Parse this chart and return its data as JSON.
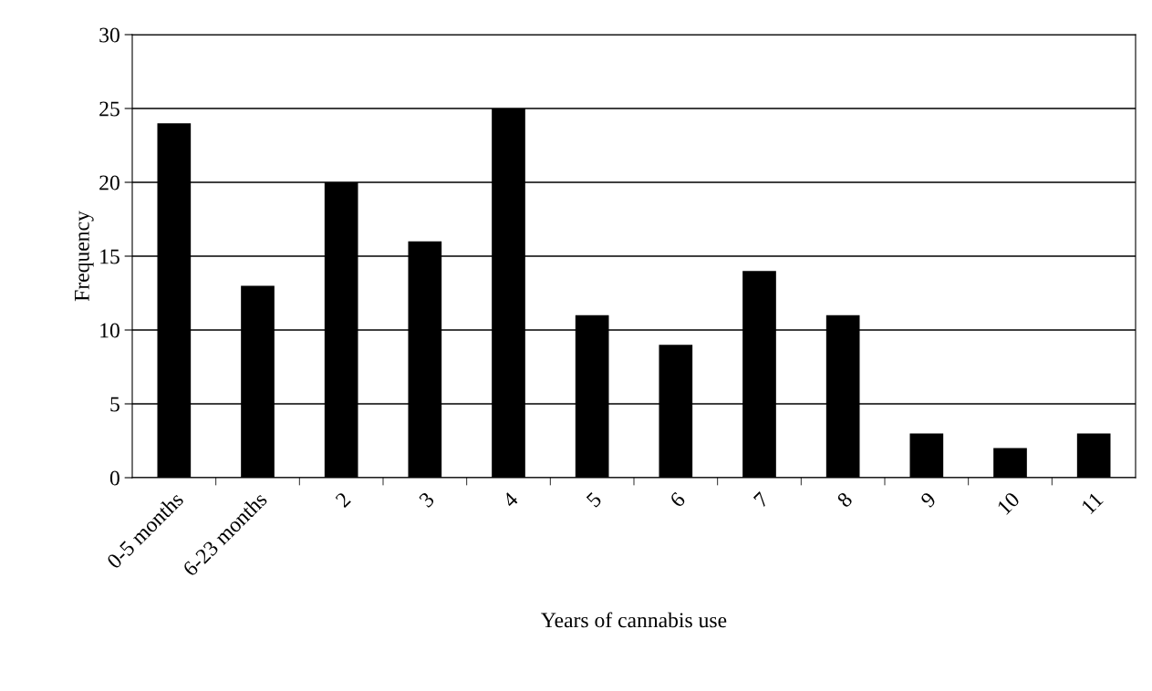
{
  "chart_data": {
    "type": "bar",
    "xlabel": "Years of cannabis use",
    "ylabel": "Frequency",
    "categories": [
      "0-5 months",
      "6-23 months",
      "2",
      "3",
      "4",
      "5",
      "6",
      "7",
      "8",
      "9",
      "10",
      "11"
    ],
    "values": [
      24,
      13,
      20,
      16,
      25,
      11,
      9,
      14,
      11,
      3,
      2,
      3
    ],
    "color": "#000000",
    "ylim": [
      0,
      30
    ],
    "yticks": [
      0,
      5,
      10,
      15,
      20,
      25,
      30
    ],
    "grid": "y"
  }
}
